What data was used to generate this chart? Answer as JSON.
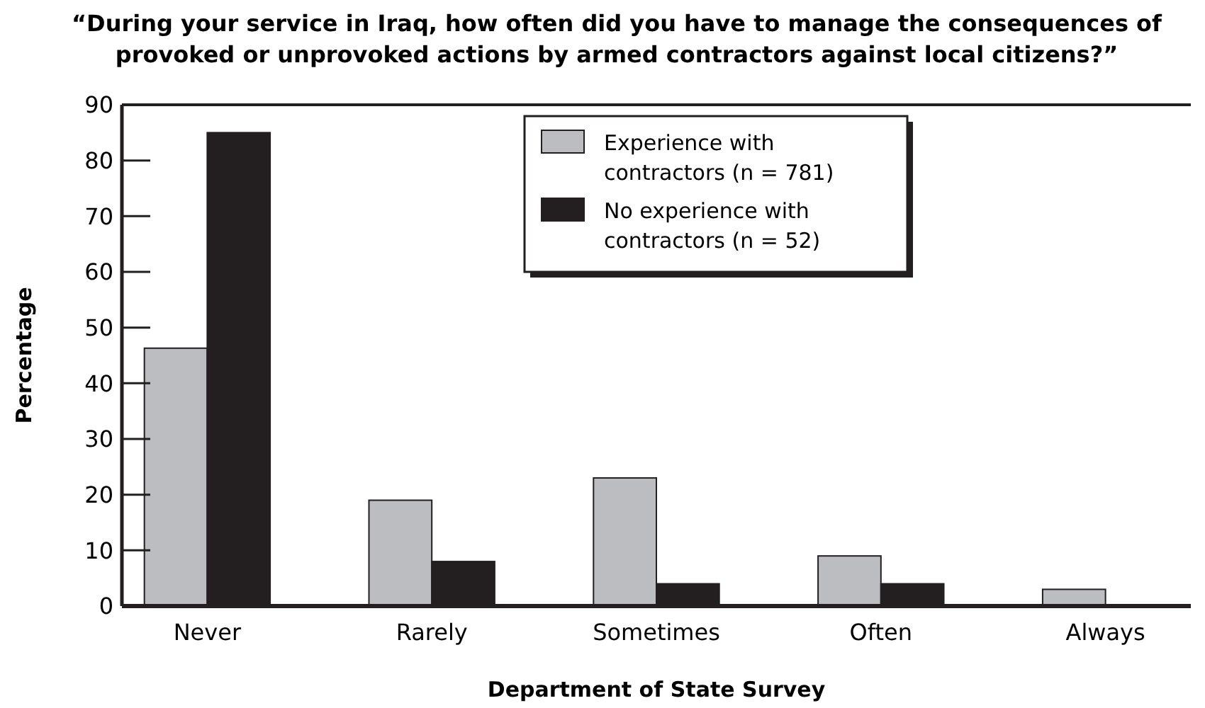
{
  "chart_data": {
    "type": "bar",
    "title": "“During your service in Iraq, how often did you have to manage the consequences of provoked or unprovoked actions by armed contractors against local citizens?”",
    "xlabel": "Department of State Survey",
    "ylabel": "Percentage",
    "categories": [
      "Never",
      "Rarely",
      "Sometimes",
      "Often",
      "Always"
    ],
    "series": [
      {
        "name": "Experience with contractors (n = 781)",
        "color": "#bcbdc0",
        "values": [
          46.3,
          19,
          23,
          9,
          3
        ]
      },
      {
        "name": "No experience with contractors (n = 52)",
        "color": "#231f20",
        "values": [
          85,
          8,
          4,
          4,
          0
        ]
      }
    ],
    "ylim": [
      0,
      90
    ],
    "yticks": [
      0,
      10,
      20,
      30,
      40,
      50,
      60,
      70,
      80,
      90
    ],
    "grid": false,
    "legend": "top right"
  }
}
